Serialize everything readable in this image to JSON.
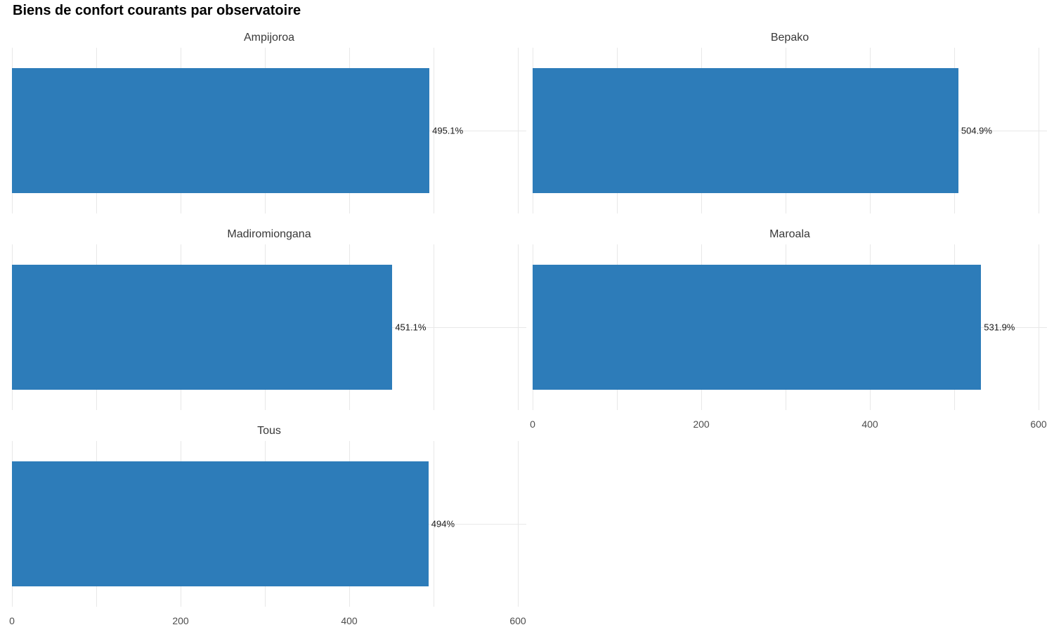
{
  "chart_data": {
    "type": "bar",
    "orientation": "horizontal",
    "title": "Biens de confort courants par observatoire",
    "unit": "%",
    "facets": [
      {
        "title": "Ampijoroa",
        "value": 495.1,
        "label": "495.1%"
      },
      {
        "title": "Bepako",
        "value": 504.9,
        "label": "504.9%"
      },
      {
        "title": "Madiromiongana",
        "value": 451.1,
        "label": "451.1%"
      },
      {
        "title": "Maroala",
        "value": 531.9,
        "label": "531.9%"
      },
      {
        "title": "Tous",
        "value": 494,
        "label": "494%"
      }
    ],
    "x_axis": {
      "range": [
        0,
        610
      ],
      "ticks": [
        0,
        200,
        400,
        600
      ],
      "gridlines": [
        0,
        100,
        200,
        300,
        400,
        500,
        600
      ]
    },
    "y_axis": {
      "labels": "none",
      "categories_per_facet": 1
    },
    "legend": "none",
    "colors": {
      "bar": "#2d7cb9",
      "grid": "#e8e8e8",
      "title": "#000000",
      "facet_title": "#383838",
      "tick_label": "#4d4d4d",
      "value_label": "#1a1a1a",
      "background": "#ffffff"
    }
  }
}
